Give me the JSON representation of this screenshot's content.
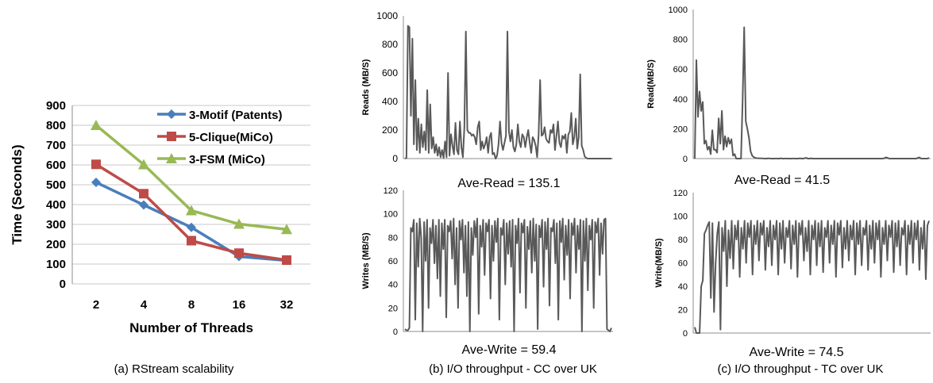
{
  "chart_data": [
    {
      "type": "line",
      "caption": "(a) RStream scalability",
      "xlabel": "Number of Threads",
      "ylabel": "Time (Seconds)",
      "categories": [
        "2",
        "4",
        "8",
        "16",
        "32"
      ],
      "ylim": [
        0,
        900
      ],
      "yticks": [
        0,
        100,
        200,
        300,
        400,
        500,
        600,
        700,
        800,
        900
      ],
      "grid": true,
      "legend": "top-right",
      "series": [
        {
          "name": "3-Motif (Patents)",
          "color": "#4a7ebb",
          "marker": "diamond",
          "values": [
            512,
            398,
            285,
            138,
            118
          ]
        },
        {
          "name": "5-Clique(MiCo)",
          "color": "#be4b48",
          "marker": "square",
          "values": [
            603,
            455,
            218,
            155,
            120
          ]
        },
        {
          "name": "3-FSM (MiCo)",
          "color": "#98b954",
          "marker": "triangle",
          "values": [
            800,
            602,
            370,
            302,
            275
          ]
        }
      ]
    },
    {
      "type": "line",
      "ylabel": "Reads (MB/S)",
      "ylim": [
        0,
        1000
      ],
      "yticks": [
        0,
        200,
        400,
        600,
        800,
        1000
      ],
      "annotation": "Ave-Read = 135.1",
      "color": "#595959",
      "values": [
        0,
        5,
        930,
        920,
        300,
        840,
        100,
        550,
        60,
        280,
        40,
        240,
        80,
        190,
        60,
        480,
        40,
        380,
        70,
        150,
        40,
        100,
        20,
        80,
        10,
        60,
        5,
        120,
        10,
        600,
        20,
        170,
        90,
        30,
        250,
        60,
        30,
        260,
        80,
        10,
        220,
        890,
        200,
        180,
        180,
        160,
        170,
        150,
        100,
        220,
        260,
        60,
        120,
        70,
        100,
        150,
        40,
        150,
        180,
        30,
        40,
        0,
        20,
        100,
        260,
        110,
        60,
        110,
        160,
        890,
        190,
        120,
        200,
        80,
        50,
        100,
        240,
        120,
        80,
        170,
        150,
        80,
        150,
        200,
        110,
        40,
        150,
        130,
        90,
        10,
        170,
        550,
        160,
        170,
        220,
        140,
        120,
        110,
        200,
        180,
        240,
        60,
        160,
        260,
        110,
        80,
        160,
        140,
        170,
        40,
        170,
        190,
        320,
        100,
        150,
        280,
        70,
        150,
        590,
        90,
        60,
        15,
        5,
        0,
        0,
        0,
        0,
        0,
        0,
        0,
        0,
        0,
        0,
        0,
        0,
        0,
        0,
        0,
        0,
        0
      ]
    },
    {
      "type": "line",
      "ylabel": "Writes (MB/S)",
      "ylim": [
        0,
        120
      ],
      "yticks": [
        0,
        20,
        40,
        60,
        80,
        100,
        120
      ],
      "annotation": "Ave-Write = 59.4",
      "caption": "(b) I/O throughput - CC over UK",
      "color": "#595959",
      "values": [
        2,
        1,
        1,
        3,
        88,
        85,
        95,
        10,
        92,
        55,
        96,
        80,
        0,
        93,
        60,
        95,
        20,
        88,
        75,
        95,
        58,
        90,
        45,
        95,
        30,
        92,
        70,
        95,
        12,
        90,
        85,
        94,
        62,
        96,
        40,
        88,
        20,
        94,
        78,
        95,
        50,
        90,
        30,
        93,
        0,
        88,
        65,
        94,
        80,
        96,
        15,
        90,
        72,
        95,
        48,
        92,
        85,
        95,
        28,
        90,
        60,
        94,
        76,
        96,
        10,
        88,
        82,
        95,
        40,
        92,
        66,
        94,
        55,
        95,
        0,
        90,
        75,
        96,
        33,
        92,
        84,
        95,
        20,
        89,
        70,
        94,
        50,
        96,
        60,
        91,
        2,
        90,
        80,
        95,
        38,
        93,
        70,
        96,
        22,
        88,
        85,
        95,
        58,
        92,
        10,
        94,
        76,
        96,
        44,
        90,
        65,
        95,
        28,
        92,
        82,
        96,
        50,
        90,
        70,
        95,
        0,
        94,
        60,
        96,
        35,
        90,
        78,
        95,
        20,
        93,
        84,
        96,
        48,
        92,
        66,
        95,
        96,
        2,
        1,
        0,
        3
      ]
    },
    {
      "type": "line",
      "ylabel": "Read(MB/S)",
      "ylim": [
        0,
        1000
      ],
      "yticks": [
        0,
        200,
        400,
        600,
        800,
        1000
      ],
      "annotation": "Ave-Read = 41.5",
      "color": "#595959",
      "values": [
        0,
        660,
        280,
        450,
        320,
        380,
        100,
        120,
        60,
        80,
        30,
        190,
        60,
        60,
        40,
        270,
        100,
        320,
        60,
        150,
        80,
        140,
        100,
        130,
        20,
        30,
        0,
        0,
        0,
        0,
        380,
        880,
        250,
        200,
        140,
        50,
        20,
        10,
        5,
        3,
        2,
        2,
        1,
        1,
        0,
        0,
        2,
        1,
        0,
        0,
        0,
        1,
        0,
        0,
        2,
        0,
        0,
        1,
        0,
        0,
        0,
        0,
        1,
        0,
        0,
        0,
        2,
        0,
        0,
        3,
        5,
        0,
        0,
        2,
        0,
        0,
        0,
        0,
        0,
        0,
        0,
        0,
        0,
        0,
        0,
        0,
        0,
        0,
        0,
        0,
        0,
        0,
        0,
        0,
        0,
        0,
        0,
        0,
        0,
        0,
        0,
        0,
        0,
        0,
        0,
        0,
        0,
        0,
        0,
        0,
        0,
        0,
        0,
        0,
        0,
        0,
        0,
        0,
        0,
        3,
        8,
        5,
        0,
        0,
        0,
        0,
        0,
        0,
        0,
        0,
        0,
        0,
        0,
        0,
        0,
        0,
        0,
        0,
        0,
        0,
        5,
        8,
        0,
        0,
        0,
        0,
        0,
        5
      ]
    },
    {
      "type": "line",
      "ylabel": "Write(MB/S)",
      "ylim": [
        0,
        120
      ],
      "yticks": [
        0,
        20,
        40,
        60,
        80,
        100,
        120
      ],
      "annotation": "Ave-Write = 74.5",
      "caption": "(c) I/O throughput - TC over UK",
      "color": "#595959",
      "values": [
        5,
        0,
        0,
        0,
        40,
        45,
        85,
        88,
        92,
        95,
        30,
        94,
        18,
        60,
        85,
        95,
        3,
        90,
        70,
        96,
        40,
        88,
        64,
        96,
        55,
        92,
        80,
        96,
        48,
        90,
        72,
        96,
        60,
        94,
        82,
        96,
        50,
        92,
        76,
        96,
        62,
        94,
        84,
        96,
        54,
        90,
        74,
        96,
        58,
        92,
        80,
        96,
        50,
        94,
        72,
        96,
        60,
        90,
        82,
        96,
        55,
        92,
        76,
        96,
        48,
        94,
        84,
        96,
        62,
        90,
        70,
        96,
        50,
        92,
        80,
        96,
        58,
        94,
        74,
        96,
        52,
        90,
        82,
        96,
        60,
        92,
        76,
        96,
        48,
        94,
        84,
        96,
        56,
        90,
        72,
        96,
        62,
        92,
        80,
        96,
        50,
        94,
        76,
        96,
        58,
        90,
        84,
        96,
        54,
        92,
        72,
        96,
        60,
        94,
        80,
        96,
        48,
        90,
        76,
        96,
        62,
        92,
        82,
        96,
        52,
        94,
        74,
        96,
        58,
        90,
        84,
        96,
        50,
        92,
        76,
        96,
        60,
        94,
        80,
        96,
        54,
        90,
        72,
        96,
        46,
        92,
        96
      ]
    }
  ]
}
